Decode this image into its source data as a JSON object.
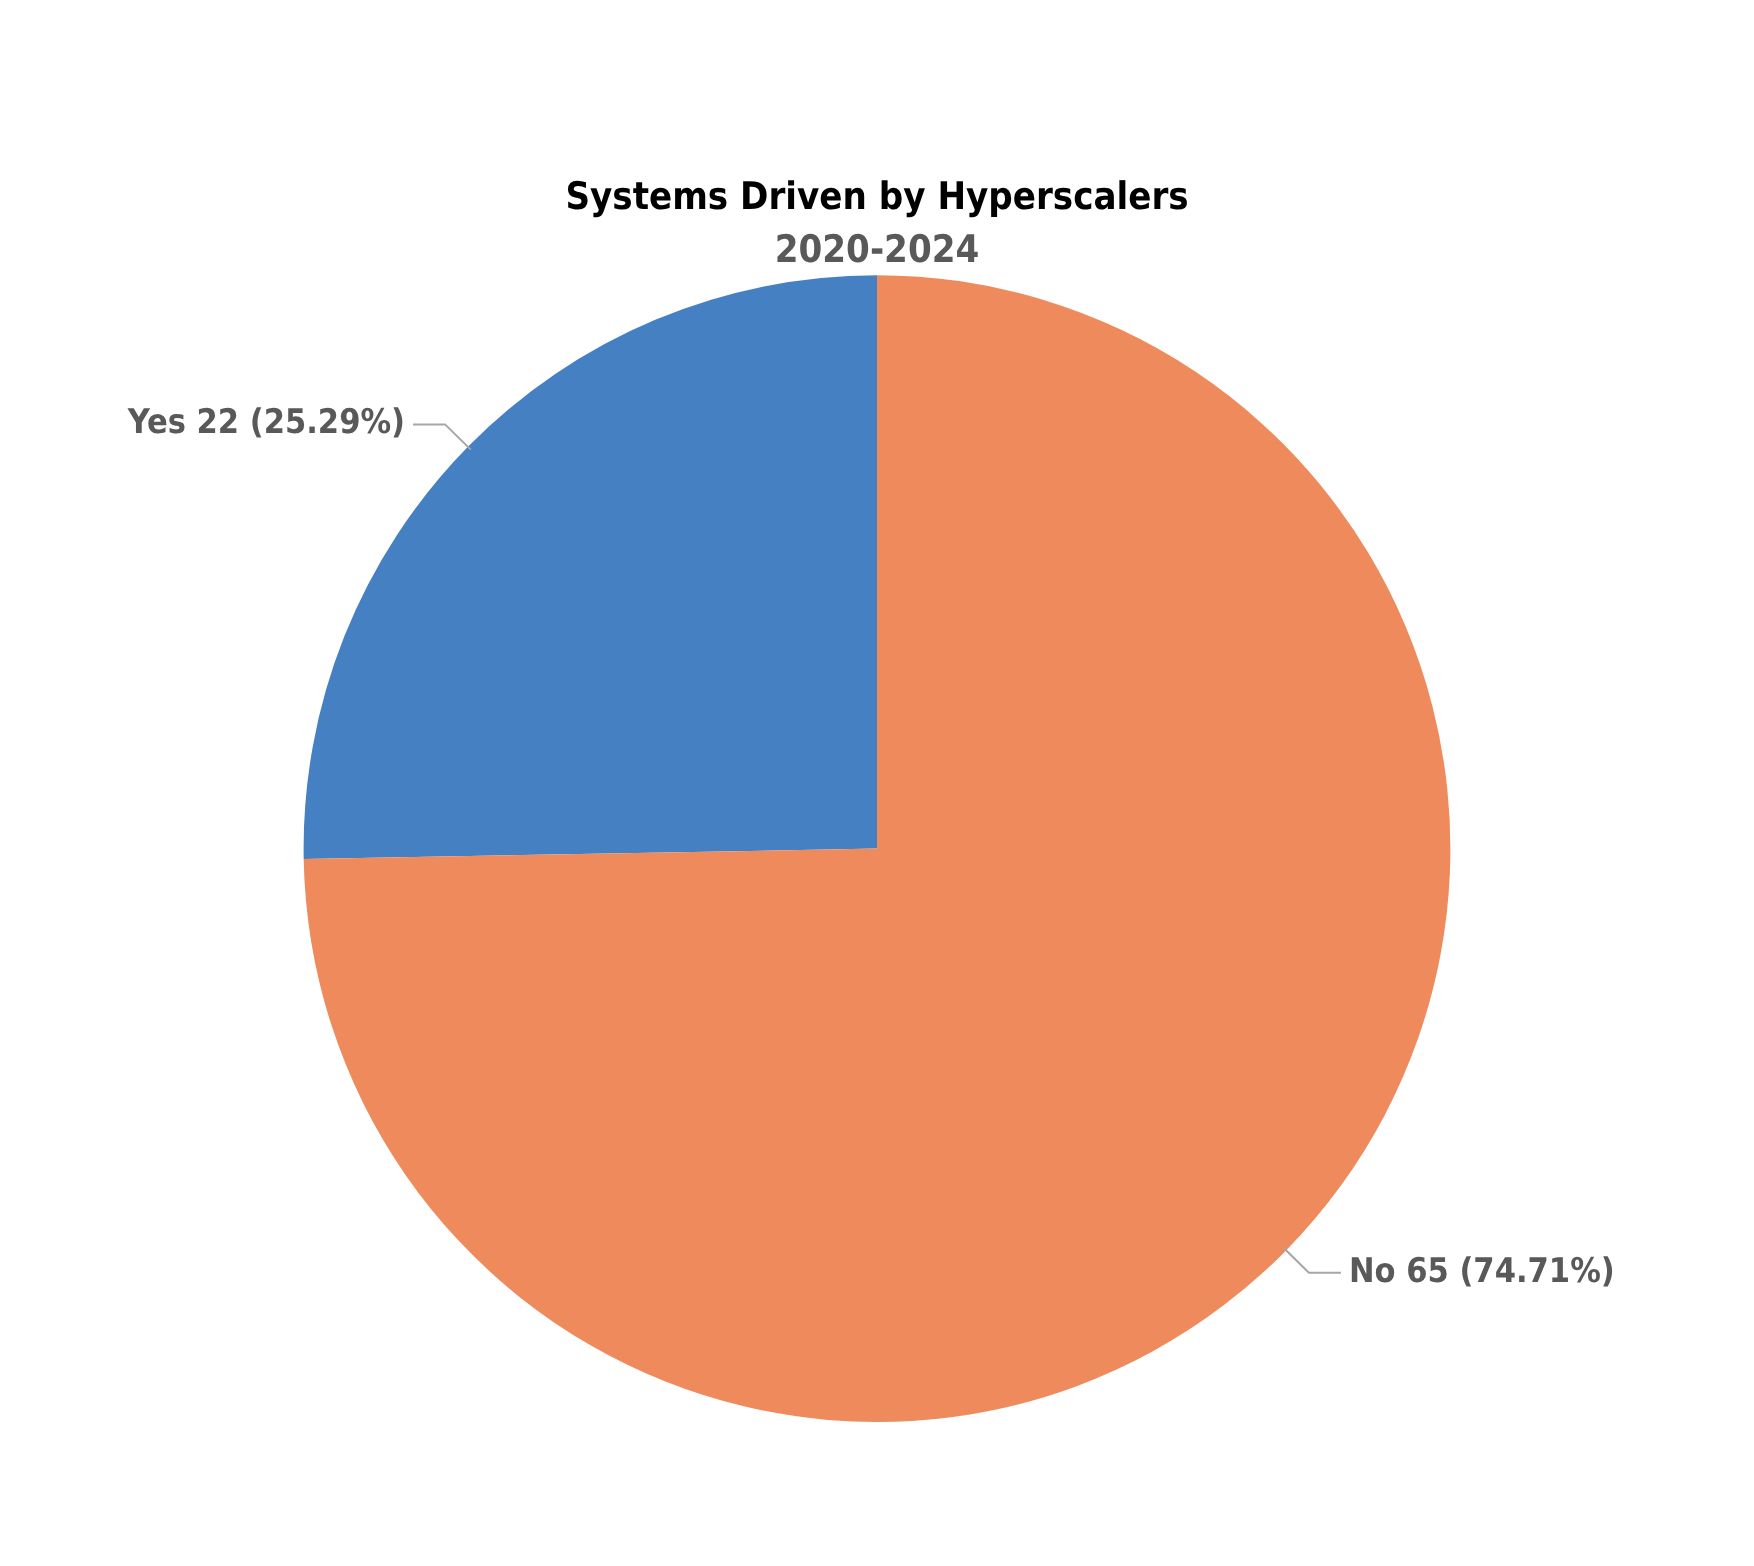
{
  "chart_data": {
    "type": "pie",
    "title": "Systems Driven by Hyperscalers",
    "subtitle": "2020-2024",
    "categories": [
      "Yes",
      "No"
    ],
    "values": [
      22,
      65
    ],
    "colors": [
      "#4580c3",
      "#ee8a5c"
    ],
    "value_labels": [
      "22 (25.29%)",
      "65 (74.71%)"
    ],
    "legend": false
  }
}
